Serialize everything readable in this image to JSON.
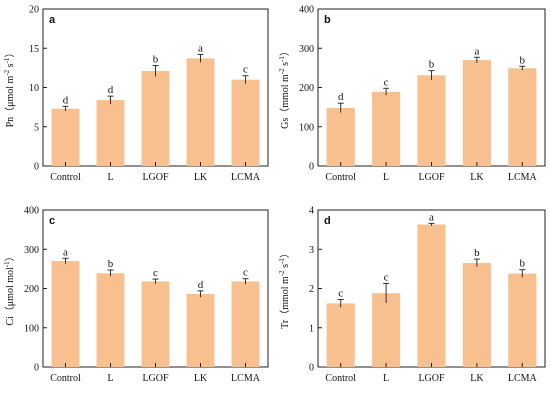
{
  "colors": {
    "bar": "#f9c08f",
    "axis": "#222222",
    "error": "#333333"
  },
  "chart_data": [
    {
      "type": "bar",
      "panel": "a",
      "ylabel": {
        "main": "Pn（μmol m",
        "sup1": "-2",
        "mid": " s",
        "sup2": "-1",
        "end": "）"
      },
      "categories": [
        "Control",
        "L",
        "LGOF",
        "LK",
        "LCMA"
      ],
      "values": [
        7.3,
        8.4,
        12.1,
        13.7,
        11.0
      ],
      "errors": [
        0.3,
        0.5,
        0.7,
        0.5,
        0.5
      ],
      "letters": [
        "d",
        "d",
        "b",
        "a",
        "c"
      ],
      "ylim": [
        0,
        20
      ],
      "yticks": [
        "0",
        "5",
        "10",
        "15",
        "20"
      ]
    },
    {
      "type": "bar",
      "panel": "b",
      "ylabel": {
        "main": "Gs（mmol m",
        "sup1": "-2",
        "mid": " s",
        "sup2": "-1",
        "end": "）"
      },
      "categories": [
        "Control",
        "L",
        "LGOF",
        "LK",
        "LCMA"
      ],
      "values": [
        148,
        189,
        231,
        270,
        249
      ],
      "errors": [
        12,
        9,
        12,
        7,
        5
      ],
      "letters": [
        "d",
        "c",
        "b",
        "a",
        "b"
      ],
      "ylim": [
        0,
        400
      ],
      "yticks": [
        "0",
        "100",
        "200",
        "300",
        "400"
      ]
    },
    {
      "type": "bar",
      "panel": "c",
      "ylabel": {
        "main": "Ci（μmol mol",
        "sup1": "-1",
        "mid": "",
        "sup2": "",
        "end": "）"
      },
      "categories": [
        "Control",
        "L",
        "LGOF",
        "LK",
        "LCMA"
      ],
      "values": [
        270,
        239,
        218,
        186,
        218
      ],
      "errors": [
        7,
        8,
        6,
        8,
        7
      ],
      "letters": [
        "a",
        "b",
        "c",
        "d",
        "c"
      ],
      "ylim": [
        0,
        400
      ],
      "yticks": [
        "0",
        "100",
        "200",
        "300",
        "400"
      ]
    },
    {
      "type": "bar",
      "panel": "d",
      "ylabel": {
        "main": "Tr（mmol m",
        "sup1": "-2",
        "mid": " s",
        "sup2": "-1",
        "end": "）"
      },
      "categories": [
        "Control",
        "L",
        "LGOF",
        "LK",
        "LCMA"
      ],
      "values": [
        1.62,
        1.88,
        3.63,
        2.65,
        2.38
      ],
      "errors": [
        0.1,
        0.25,
        0.03,
        0.1,
        0.1
      ],
      "letters": [
        "c",
        "c",
        "a",
        "b",
        "b"
      ],
      "ylim": [
        0,
        4
      ],
      "yticks": [
        "0",
        "1",
        "2",
        "3",
        "4"
      ]
    }
  ]
}
